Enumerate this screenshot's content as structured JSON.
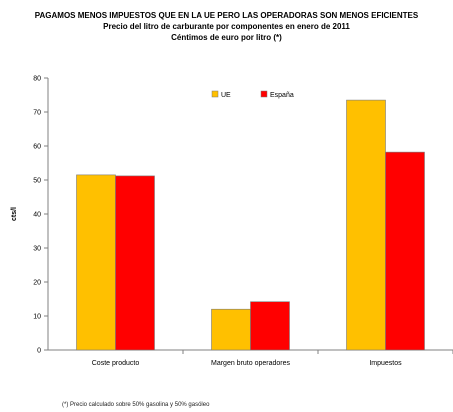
{
  "chart_data": {
    "type": "bar",
    "title": "PAGAMOS MENOS IMPUESTOS QUE EN LA UE PERO LAS OPERADORAS SON MENOS  EFICIENTES",
    "subtitle": "Precio del litro de carburante por componentes en enero de 2011",
    "subtitle2": "Céntimos de euro por litro  (*)",
    "xlabel": "",
    "ylabel": "cts/l",
    "ylim": [
      0,
      80
    ],
    "yticks": [
      0,
      10,
      20,
      30,
      40,
      50,
      60,
      70,
      80
    ],
    "grid": false,
    "legend_position": "top-center",
    "categories": [
      "Coste producto",
      "Margen bruto operadores",
      "Impuestos"
    ],
    "series": [
      {
        "name": "UE",
        "color": "#FFC000",
        "values": [
          51.5,
          12.0,
          73.5
        ]
      },
      {
        "name": "España",
        "color": "#FF0000",
        "values": [
          51.2,
          14.2,
          58.2
        ]
      }
    ]
  },
  "footnote": "(*) Precio calculado sobre 50% gasolina y 50% gasóleo"
}
